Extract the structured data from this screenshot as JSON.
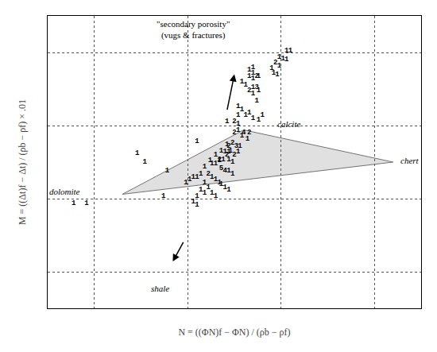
{
  "chart_data": {
    "type": "scatter",
    "x_label": "N = ((ΦN)f − ΦN) / (ρb − ρf)",
    "y_label": "M = ((Δt)f − Δt) / (ρb − ρf) × .01",
    "xlim": [
      -0.5,
      1.5
    ],
    "ylim": [
      -0.5,
      1.5
    ],
    "xticks": [
      -0.25,
      0.25,
      0.75,
      1.25
    ],
    "yticks": [
      -0.25,
      0.25,
      0.75,
      1.25
    ],
    "grid": true,
    "tick_labels": false,
    "triangle": {
      "vertices": [
        [
          0.55,
          0.72
        ],
        [
          1.35,
          0.5
        ],
        [
          -0.1,
          0.28
        ]
      ],
      "color": "#c8c8c8"
    },
    "points": [
      [
        0.52,
        0.72,
        "1"
      ],
      [
        0.5,
        0.7,
        "2"
      ],
      [
        0.54,
        0.68,
        "1"
      ],
      [
        0.55,
        0.7,
        "4"
      ],
      [
        0.58,
        0.7,
        "2"
      ],
      [
        0.57,
        0.66,
        "1"
      ],
      [
        0.46,
        0.62,
        "1"
      ],
      [
        0.47,
        0.61,
        "2"
      ],
      [
        0.49,
        0.63,
        "2"
      ],
      [
        0.51,
        0.61,
        "3"
      ],
      [
        0.53,
        0.61,
        "1"
      ],
      [
        0.43,
        0.58,
        "1"
      ],
      [
        0.45,
        0.57,
        "1"
      ],
      [
        0.47,
        0.57,
        "1"
      ],
      [
        0.48,
        0.58,
        "1"
      ],
      [
        0.5,
        0.55,
        "2"
      ],
      [
        0.52,
        0.57,
        "1"
      ],
      [
        0.4,
        0.55,
        "1"
      ],
      [
        0.42,
        0.52,
        "2"
      ],
      [
        0.44,
        0.52,
        "1"
      ],
      [
        0.46,
        0.55,
        "2"
      ],
      [
        0.47,
        0.52,
        "1"
      ],
      [
        0.49,
        0.5,
        "1"
      ],
      [
        0.37,
        0.51,
        "1"
      ],
      [
        0.38,
        0.49,
        "1"
      ],
      [
        0.4,
        0.49,
        "1"
      ],
      [
        0.42,
        0.51,
        "1"
      ],
      [
        0.43,
        0.46,
        "5"
      ],
      [
        0.45,
        0.44,
        "4"
      ],
      [
        0.47,
        0.44,
        "1"
      ],
      [
        0.49,
        0.42,
        "1"
      ],
      [
        0.34,
        0.47,
        "1"
      ],
      [
        0.36,
        0.42,
        "2"
      ],
      [
        0.38,
        0.4,
        "1"
      ],
      [
        0.4,
        0.38,
        "1"
      ],
      [
        0.42,
        0.36,
        "1"
      ],
      [
        0.43,
        0.35,
        "1"
      ],
      [
        0.45,
        0.33,
        "1"
      ],
      [
        0.47,
        0.31,
        "1"
      ],
      [
        0.32,
        0.42,
        "1"
      ],
      [
        0.3,
        0.4,
        "1"
      ],
      [
        0.28,
        0.4,
        "1"
      ],
      [
        0.26,
        0.38,
        "1"
      ],
      [
        0.24,
        0.36,
        "1"
      ],
      [
        0.34,
        0.36,
        "1"
      ],
      [
        0.36,
        0.33,
        "1"
      ],
      [
        0.38,
        0.29,
        "1"
      ],
      [
        0.4,
        0.27,
        "1"
      ],
      [
        0.32,
        0.31,
        "1"
      ],
      [
        0.34,
        0.29,
        "1"
      ],
      [
        0.3,
        0.27,
        "1"
      ],
      [
        0.28,
        0.23,
        "1"
      ],
      [
        0.3,
        0.21,
        "1"
      ],
      [
        0.14,
        0.44,
        "1"
      ],
      [
        0.02,
        0.5,
        "1"
      ],
      [
        -0.02,
        0.56,
        "1"
      ],
      [
        0.12,
        0.27,
        "1"
      ],
      [
        0.3,
        0.64,
        "1"
      ],
      [
        0.56,
        0.82,
        "1"
      ],
      [
        0.54,
        0.86,
        "1"
      ],
      [
        0.52,
        0.88,
        "1"
      ],
      [
        0.6,
        0.8,
        "1"
      ],
      [
        0.63,
        0.79,
        "1"
      ],
      [
        0.65,
        0.82,
        "1"
      ],
      [
        0.62,
        0.92,
        "1"
      ],
      [
        0.6,
        0.97,
        "1"
      ],
      [
        0.58,
        0.99,
        "2"
      ],
      [
        0.6,
        1.01,
        "1"
      ],
      [
        0.62,
        1.01,
        "3"
      ],
      [
        0.63,
        0.99,
        "1"
      ],
      [
        0.56,
        1.03,
        "1"
      ],
      [
        0.54,
        1.05,
        "1"
      ],
      [
        0.6,
        1.07,
        "1"
      ],
      [
        0.58,
        1.09,
        "1"
      ],
      [
        0.6,
        1.11,
        "1"
      ],
      [
        0.62,
        1.09,
        "2"
      ],
      [
        0.58,
        1.13,
        "1"
      ],
      [
        0.6,
        1.15,
        "1"
      ],
      [
        0.63,
        1.09,
        "1"
      ],
      [
        0.58,
        0.84,
        "1"
      ],
      [
        0.52,
        0.82,
        "1"
      ],
      [
        0.46,
        0.78,
        "1"
      ],
      [
        0.5,
        0.78,
        "2"
      ],
      [
        0.52,
        0.76,
        "1"
      ],
      [
        0.78,
        1.26,
        "1"
      ],
      [
        0.8,
        1.26,
        "1"
      ],
      [
        0.74,
        1.22,
        "1"
      ],
      [
        0.76,
        1.21,
        "1"
      ],
      [
        0.78,
        1.2,
        "1"
      ],
      [
        0.72,
        1.18,
        "2"
      ],
      [
        0.74,
        1.16,
        "1"
      ],
      [
        0.7,
        1.14,
        "1"
      ],
      [
        0.73,
        1.1,
        "1"
      ],
      [
        0.71,
        1.11,
        "1"
      ]
    ],
    "annotations": [
      {
        "text": "calcite",
        "x": 0.72,
        "y": 0.76,
        "anchor": "left",
        "style": "italic"
      },
      {
        "text": "chert",
        "x": 1.38,
        "y": 0.51,
        "anchor": "left",
        "style": "italic"
      },
      {
        "text": "dolomite",
        "x": -0.5,
        "y": 0.3,
        "anchor": "left",
        "style": "italic"
      },
      {
        "text": "1  1",
        "x": -0.38,
        "y": 0.22,
        "anchor": "left",
        "style": "mono"
      },
      {
        "text": "\"secondary porosity\"\n(vugs & fractures)",
        "x": 0.28,
        "y": 1.32,
        "anchor": "bottom",
        "style": "normal"
      },
      {
        "text": "shale",
        "x": 0.1,
        "y": -0.32,
        "anchor": "top",
        "style": "italic"
      }
    ],
    "arrows": [
      {
        "tail": [
          0.46,
          0.85
        ],
        "tip": [
          0.5,
          1.1
        ]
      },
      {
        "tail": [
          0.23,
          -0.04
        ],
        "tip": [
          0.17,
          -0.18
        ]
      }
    ]
  }
}
